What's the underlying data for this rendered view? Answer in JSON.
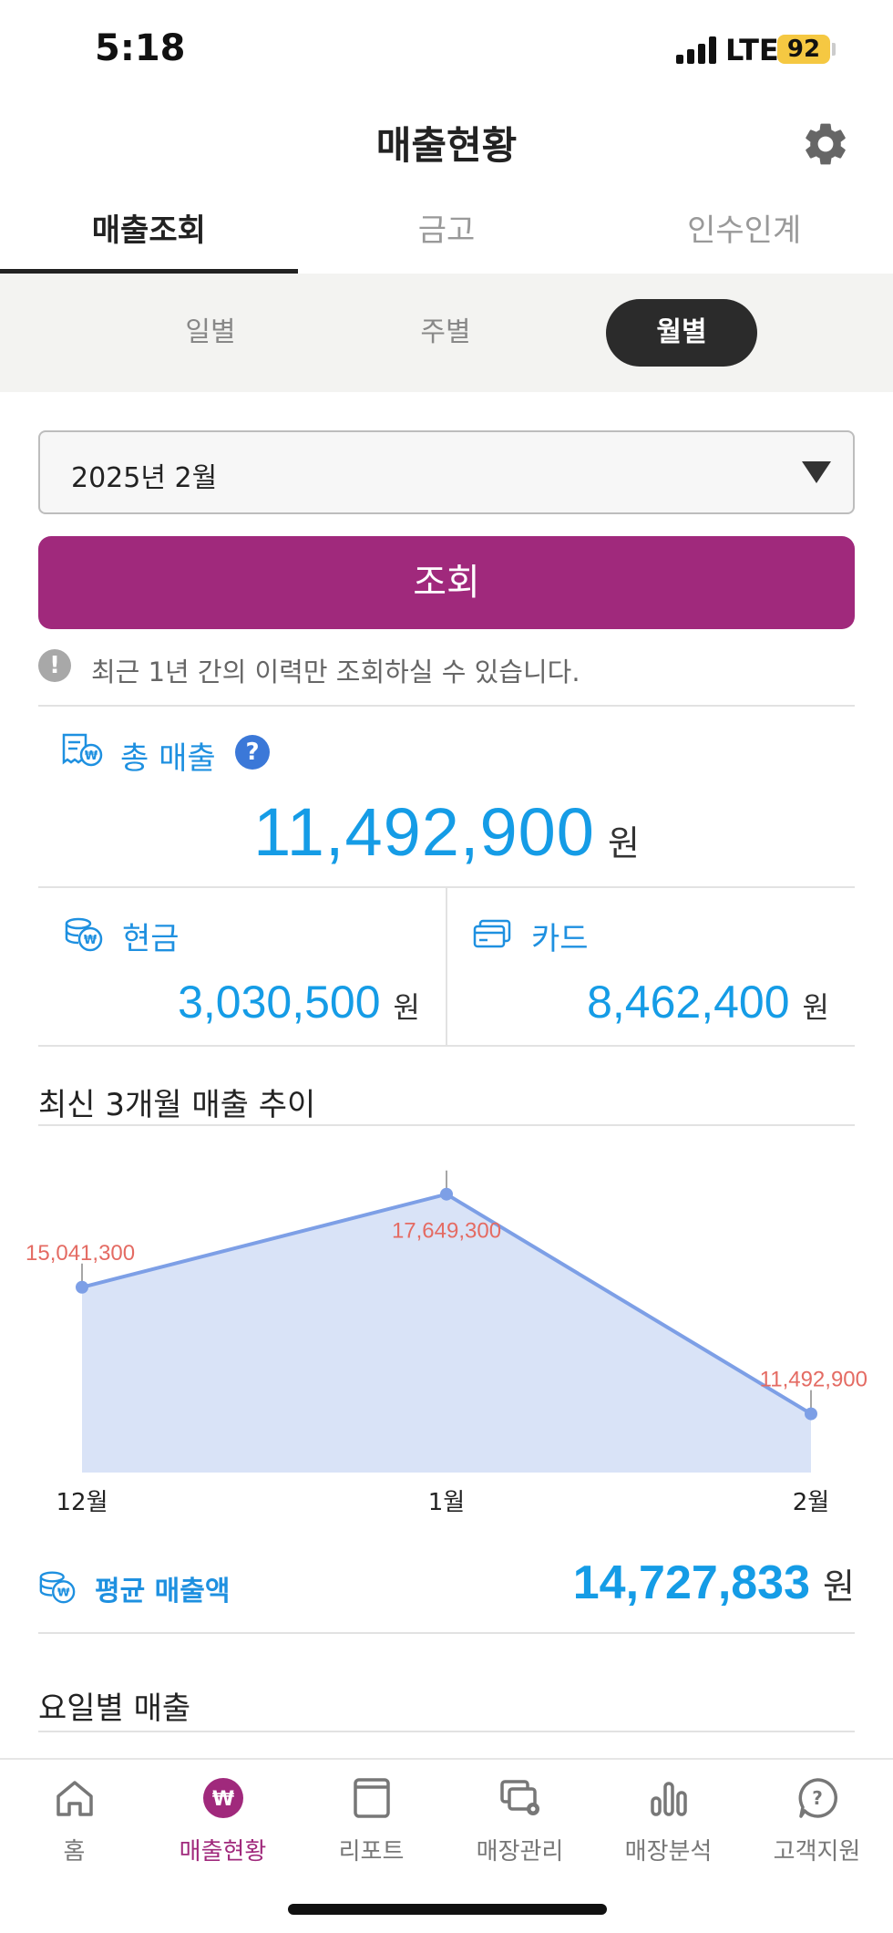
{
  "status_bar": {
    "time": "5:18",
    "network": "LTE",
    "battery": "92"
  },
  "header": {
    "title": "매출현황",
    "settings_icon": "gear-icon"
  },
  "main_tabs": [
    {
      "label": "매출조회",
      "active": true
    },
    {
      "label": "금고",
      "active": false
    },
    {
      "label": "인수인계",
      "active": false
    }
  ],
  "period_tabs": [
    {
      "label": "일별",
      "active": false
    },
    {
      "label": "주별",
      "active": false
    },
    {
      "label": "월별",
      "active": true
    }
  ],
  "date_select": {
    "value": "2025년 2월"
  },
  "search_button": {
    "label": "조회"
  },
  "notice": {
    "text": "최근 1년 간의 이력만 조회하실 수 있습니다."
  },
  "total": {
    "label": "총 매출",
    "amount": "11,492,900",
    "unit": "원"
  },
  "cash": {
    "label": "현금",
    "amount": "3,030,500",
    "unit": "원"
  },
  "card": {
    "label": "카드",
    "amount": "8,462,400",
    "unit": "원"
  },
  "trend_title": "최신 3개월 매출 추이",
  "chart_data": {
    "type": "area",
    "categories": [
      "12월",
      "1월",
      "2월"
    ],
    "values": [
      15041300,
      17649300,
      11492900
    ],
    "data_labels": [
      "15,041,300",
      "17,649,300",
      "11,492,900"
    ],
    "colors": {
      "fill": "#d9e3f7",
      "line": "#7d9fe6",
      "label": "#e46b63"
    }
  },
  "average": {
    "label": "평균 매출액",
    "amount": "14,727,833",
    "unit": "원"
  },
  "weekday_title": "요일별 매출",
  "bottom_nav": [
    {
      "label": "홈",
      "icon": "home-icon",
      "active": false
    },
    {
      "label": "매출현황",
      "icon": "won-icon",
      "active": true
    },
    {
      "label": "리포트",
      "icon": "report-icon",
      "active": false
    },
    {
      "label": "매장관리",
      "icon": "store-manage-icon",
      "active": false
    },
    {
      "label": "매장분석",
      "icon": "bar-chart-icon",
      "active": false
    },
    {
      "label": "고객지원",
      "icon": "help-circle-icon",
      "active": false
    }
  ]
}
